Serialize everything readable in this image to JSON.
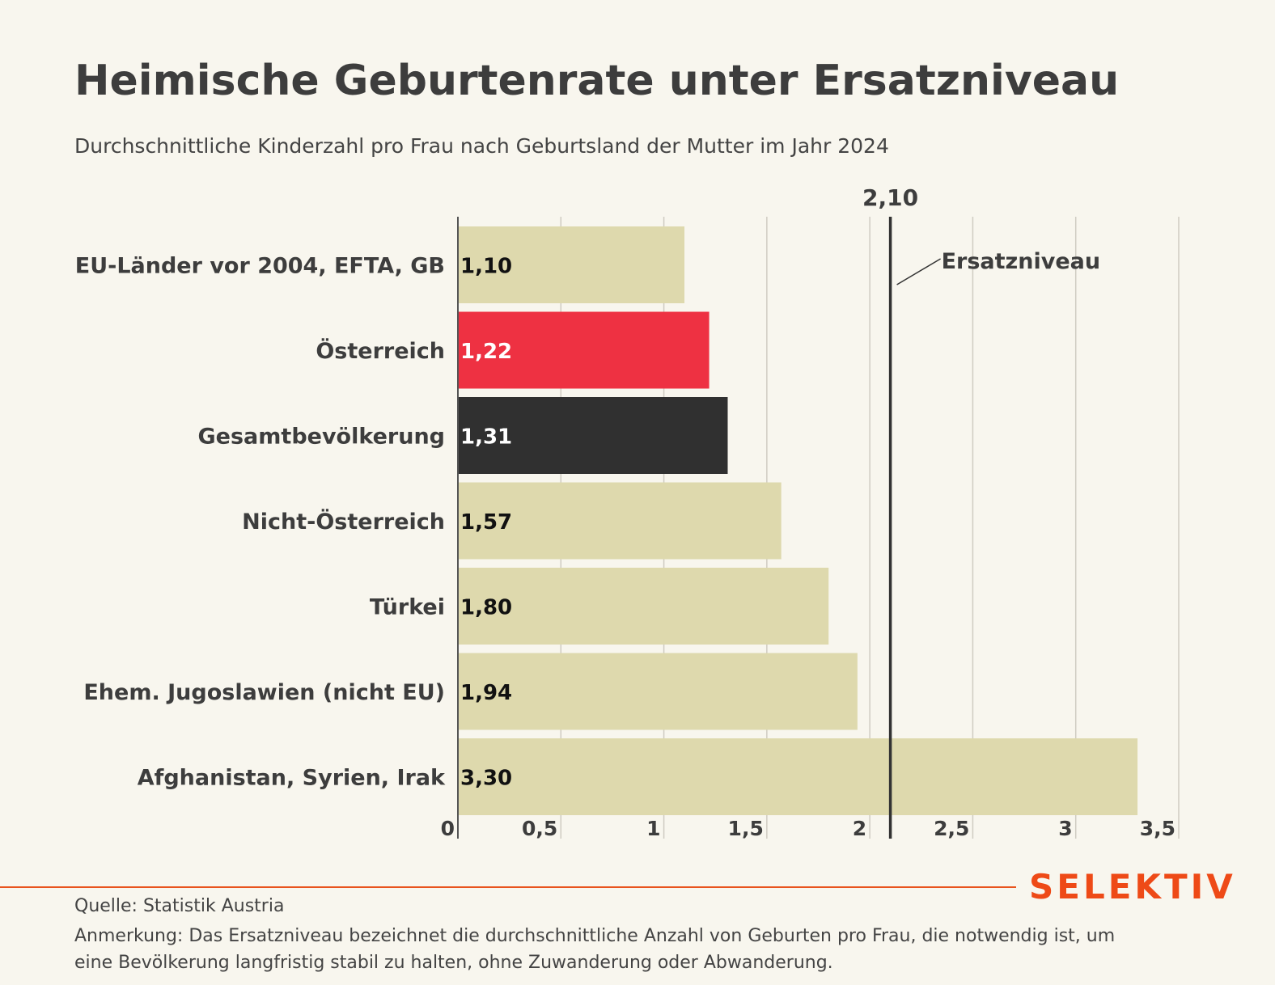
{
  "title": "Heimische Geburtenrate unter Ersatzniveau",
  "subtitle": "Durchschnittliche Kinderzahl pro Frau nach Geburtsland der Mutter im Jahr 2024",
  "chart_data": {
    "type": "bar",
    "orientation": "horizontal",
    "categories": [
      "EU-Länder vor 2004, EFTA, GB",
      "Österreich",
      "Gesamtbevölkerung",
      "Nicht-Österreich",
      "Türkei",
      "Ehem. Jugoslawien (nicht EU)",
      "Afghanistan, Syrien, Irak"
    ],
    "values": [
      1.1,
      1.22,
      1.31,
      1.57,
      1.8,
      1.94,
      3.3
    ],
    "value_labels": [
      "1,10",
      "1,22",
      "1,31",
      "1,57",
      "1,80",
      "1,94",
      "3,30"
    ],
    "bar_colors": [
      "#ded9ad",
      "#ee3142",
      "#303030",
      "#ded9ad",
      "#ded9ad",
      "#ded9ad",
      "#ded9ad"
    ],
    "label_colors": [
      "#111111",
      "#ffffff",
      "#ffffff",
      "#111111",
      "#111111",
      "#111111",
      "#111111"
    ],
    "xlim": [
      0,
      3.5
    ],
    "xticks": [
      0,
      0.5,
      1,
      1.5,
      2,
      2.5,
      3,
      3.5
    ],
    "xtick_labels": [
      "0",
      "0,5",
      "1",
      "1,5",
      "2",
      "2,5",
      "3",
      "3,5"
    ],
    "grid": true,
    "reference_line": {
      "value": 2.1,
      "value_label": "2,10",
      "name": "Ersatzniveau"
    }
  },
  "footer": {
    "brand": "SELEKTIV",
    "source": "Quelle: Statistik Austria",
    "note": "Anmerkung: Das Ersatzniveau bezeichnet die durchschnittliche Anzahl von Geburten pro Frau, die notwendig ist, um eine Bevölkerung langfristig stabil zu halten, ohne Zuwanderung oder Abwanderung."
  },
  "colors": {
    "background": "#f8f6ee",
    "accent": "#ee4a17",
    "grid": "#cfccc2",
    "axis": "#333333"
  }
}
